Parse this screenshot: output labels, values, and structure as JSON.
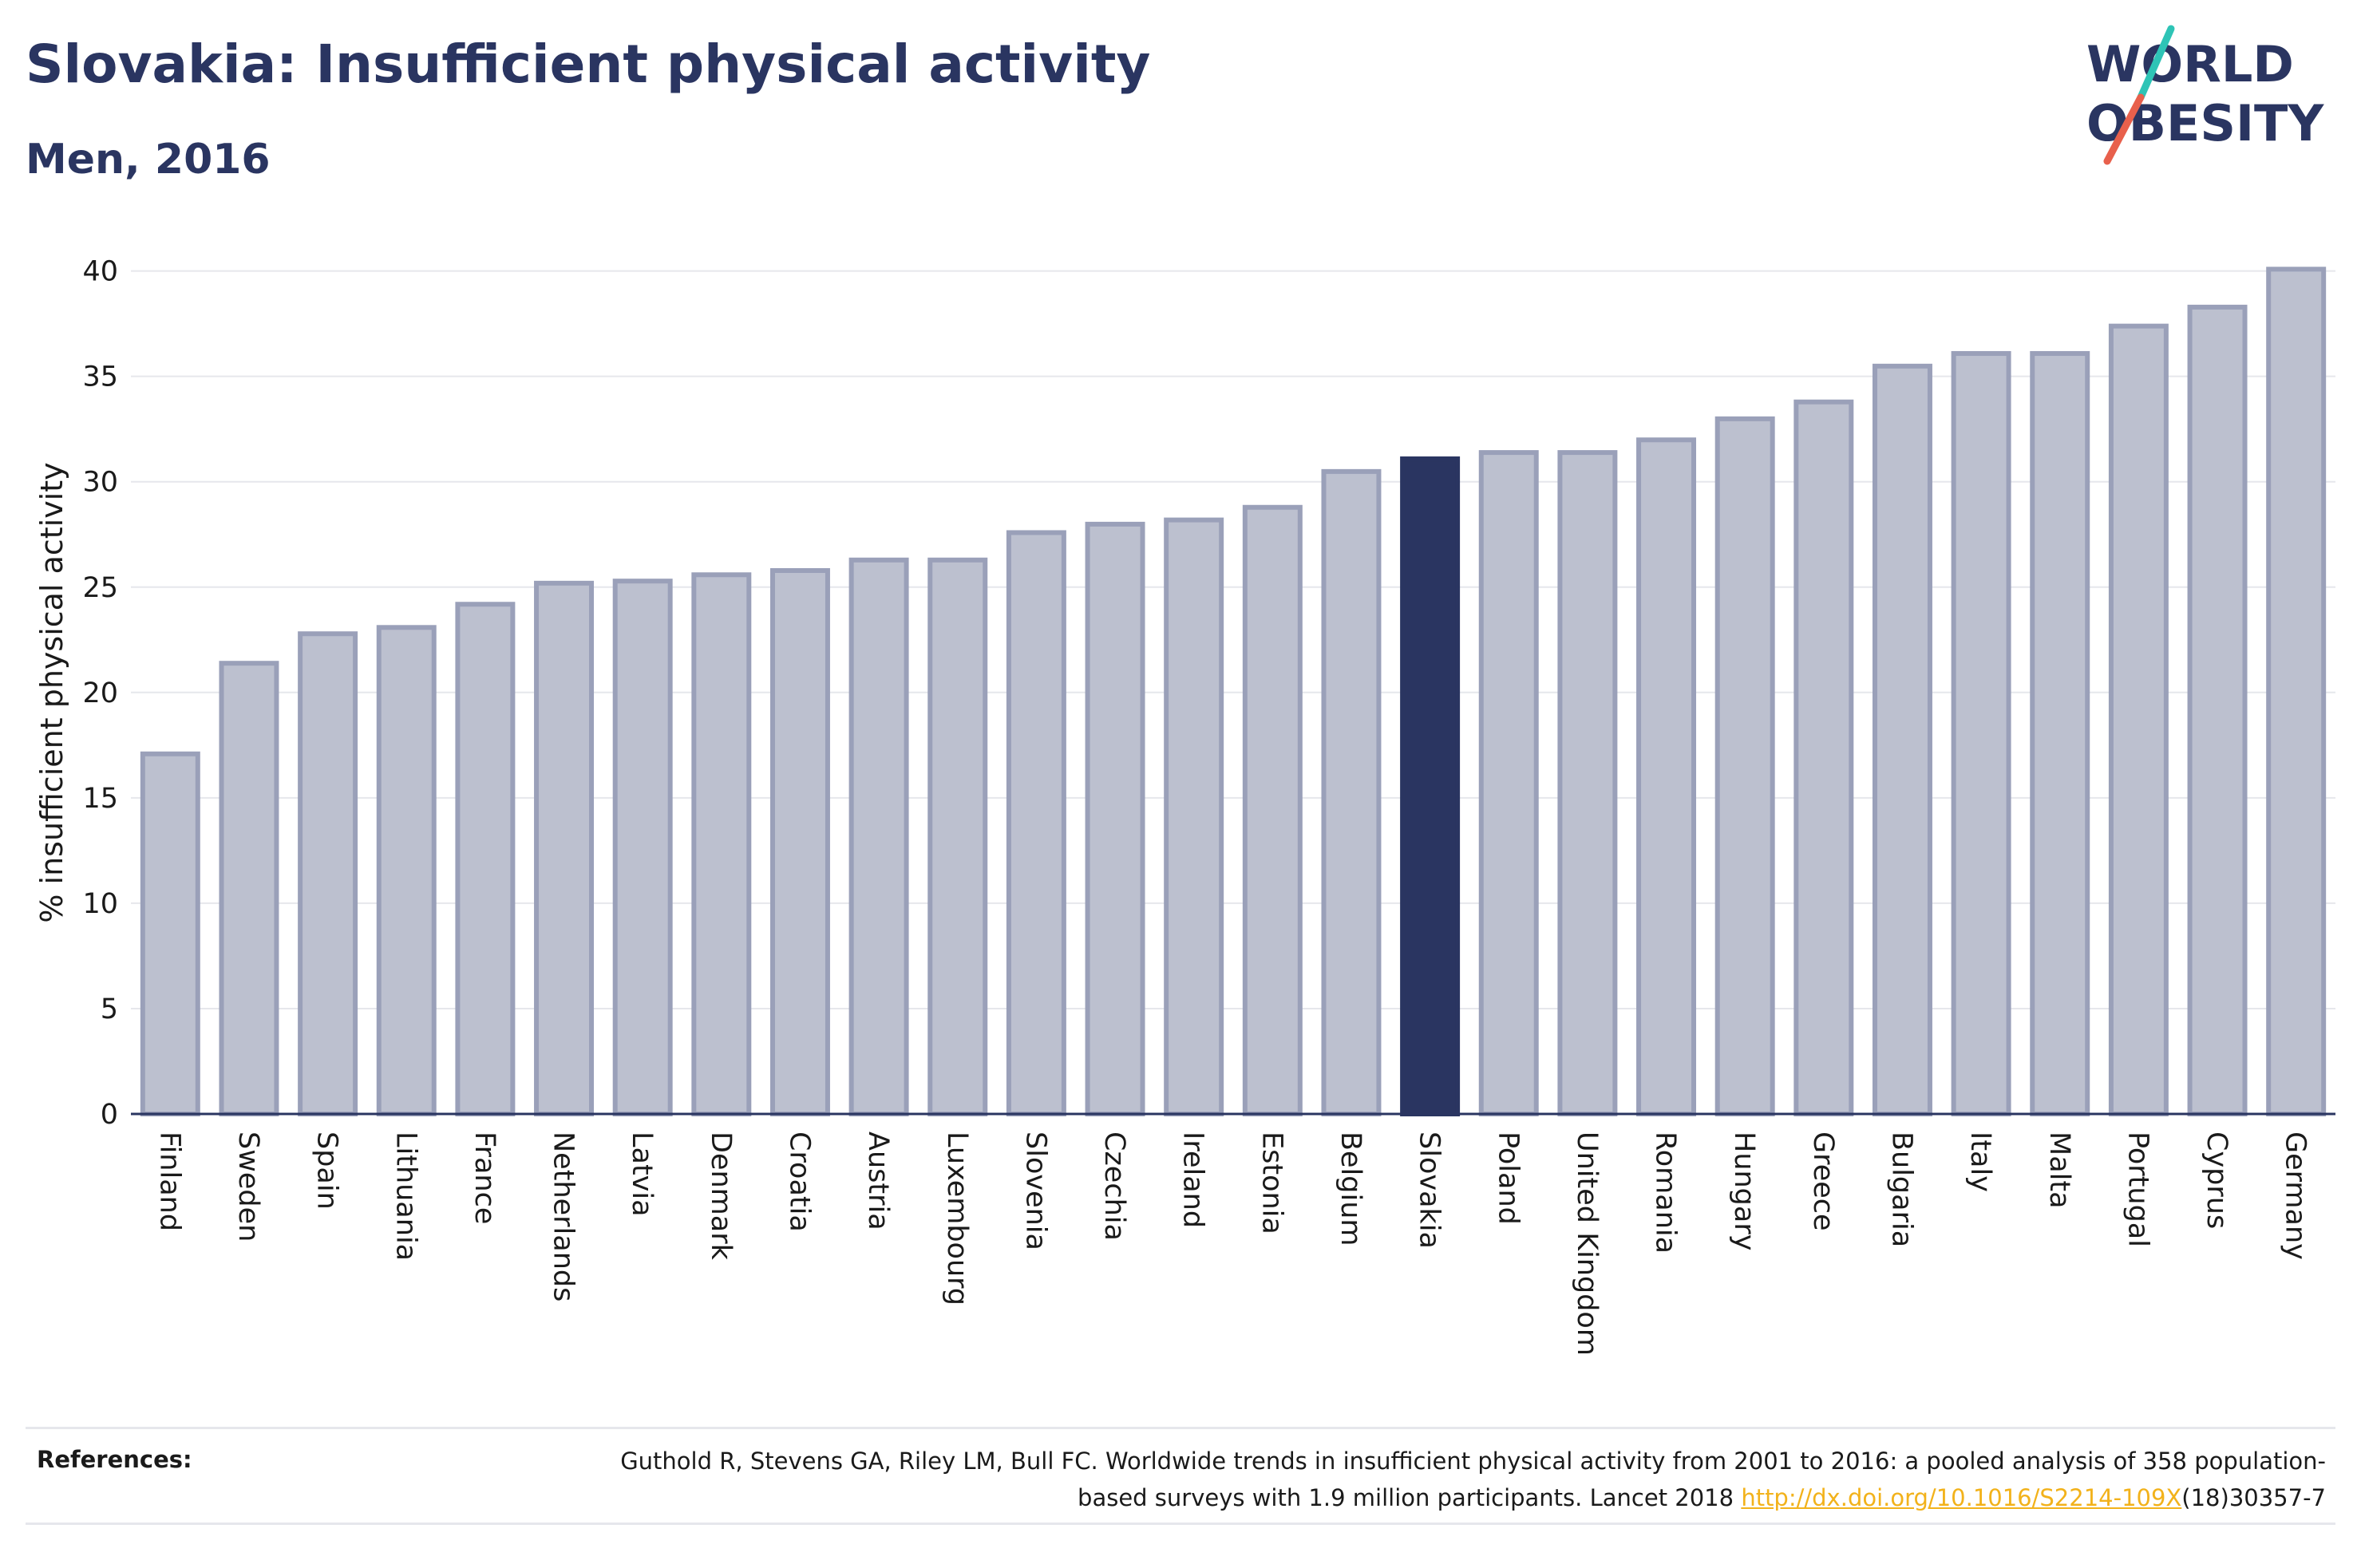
{
  "header": {
    "title": "Slovakia: Insufficient physical activity",
    "subtitle": "Men, 2016"
  },
  "logo": {
    "line1": "WORLD",
    "line2": "OBESITY",
    "colors": {
      "text": "#2a3561",
      "slash_top": "#2ec4b6",
      "slash_bottom": "#e8604c"
    }
  },
  "colors": {
    "bar_default": "#bcc0cf",
    "bar_default_edge": "#9aa0b9",
    "bar_highlight": "#2a3561",
    "grid": "#e6e7ec",
    "axis": "#2a3561"
  },
  "chart_data": {
    "type": "bar",
    "ylabel": "% insufficient physical activity",
    "xlabel": "",
    "ylim": [
      0,
      41.5
    ],
    "yticks": [
      0,
      5,
      10,
      15,
      20,
      25,
      30,
      35,
      40
    ],
    "grid": true,
    "highlight": "Slovakia",
    "categories": [
      "Finland",
      "Sweden",
      "Spain",
      "Lithuania",
      "France",
      "Netherlands",
      "Latvia",
      "Denmark",
      "Croatia",
      "Austria",
      "Luxembourg",
      "Slovenia",
      "Czechia",
      "Ireland",
      "Estonia",
      "Belgium",
      "Slovakia",
      "Poland",
      "United Kingdom",
      "Romania",
      "Hungary",
      "Greece",
      "Bulgaria",
      "Italy",
      "Malta",
      "Portugal",
      "Cyprus",
      "Germany"
    ],
    "values": [
      17.2,
      21.5,
      22.9,
      23.2,
      24.3,
      25.3,
      25.4,
      25.7,
      25.9,
      26.4,
      26.4,
      27.7,
      28.1,
      28.3,
      28.9,
      30.6,
      31.2,
      31.5,
      31.5,
      32.1,
      33.1,
      33.9,
      35.6,
      36.2,
      36.2,
      37.5,
      38.4,
      40.2
    ]
  },
  "references": {
    "label": "References:",
    "text_before_link": "Guthold R, Stevens GA, Riley LM, Bull FC. Worldwide trends in insufficient physical activity from 2001 to 2016: a pooled analysis of 358 population-based surveys with 1.9 million participants. Lancet 2018 ",
    "link": "http://dx.doi.org/10.1016/S2214-109X",
    "text_after_link": "(18)30357-7"
  }
}
